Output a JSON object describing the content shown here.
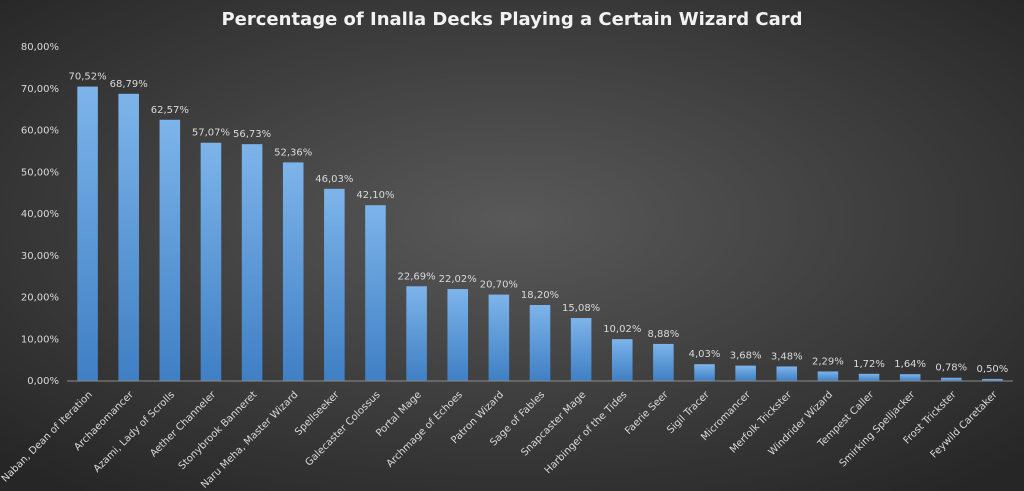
{
  "chart_data": {
    "type": "bar",
    "title": "Percentage of Inalla Decks Playing a Certain Wizard Card",
    "categories": [
      "Naban, Dean of Iteration",
      "Archaeomancer",
      "Azami, Lady of Scrolls",
      "Aether Channeler",
      "Stonybrook Banneret",
      "Naru Meha, Master Wizard",
      "Spellseeker",
      "Galecaster Colossus",
      "Portal Mage",
      "Archmage of Echoes",
      "Patron Wizard",
      "Sage of Fables",
      "Snapcaster Mage",
      "Harbinger of the Tides",
      "Faerie Seer",
      "Sigil Tracer",
      "Micromancer",
      "Merfolk Trickster",
      "Windrider Wizard",
      "Tempest Caller",
      "Smirking Spelljacker",
      "Frost Trickster",
      "Feywild Caretaker"
    ],
    "values": [
      70.52,
      68.79,
      62.57,
      57.07,
      56.73,
      52.36,
      46.03,
      42.1,
      22.69,
      22.02,
      20.7,
      18.2,
      15.08,
      10.02,
      8.88,
      4.03,
      3.68,
      3.48,
      2.29,
      1.72,
      1.64,
      0.78,
      0.5
    ],
    "value_labels": [
      "70,52%",
      "68,79%",
      "62,57%",
      "57,07%",
      "56,73%",
      "52,36%",
      "46,03%",
      "42,10%",
      "22,69%",
      "22,02%",
      "20,70%",
      "18,20%",
      "15,08%",
      "10,02%",
      "8,88%",
      "4,03%",
      "3,68%",
      "3,48%",
      "2,29%",
      "1,72%",
      "1,64%",
      "0,78%",
      "0,50%"
    ],
    "color": "#5b9bd5",
    "ylim": [
      0,
      80
    ],
    "yticks": [
      {
        "value": 0,
        "label": "0,00%"
      },
      {
        "value": 10,
        "label": "10,00%"
      },
      {
        "value": 20,
        "label": "20,00%"
      },
      {
        "value": 30,
        "label": "30,00%"
      },
      {
        "value": 40,
        "label": "40,00%"
      },
      {
        "value": 50,
        "label": "50,00%"
      },
      {
        "value": 60,
        "label": "60,00%"
      },
      {
        "value": 70,
        "label": "70,00%"
      },
      {
        "value": 80,
        "label": "80,00%"
      }
    ],
    "grid": false
  }
}
